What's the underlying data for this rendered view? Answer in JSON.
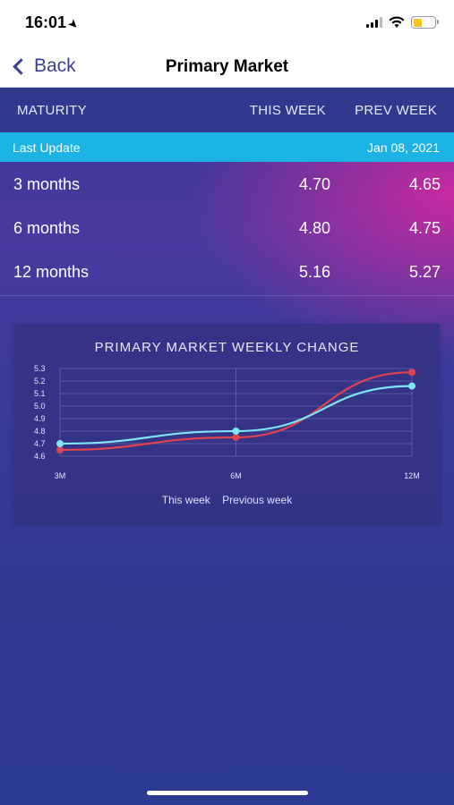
{
  "status_bar": {
    "time": "16:01",
    "battery_level": 0.4
  },
  "nav": {
    "back_label": "Back",
    "title": "Primary Market"
  },
  "table": {
    "headers": {
      "maturity": "MATURITY",
      "this_week": "THIS WEEK",
      "prev_week": "PREV WEEK"
    },
    "last_update_label": "Last Update",
    "last_update_date": "Jan 08, 2021",
    "rows": [
      {
        "maturity": "3 months",
        "this_week": "4.70",
        "prev_week": "4.65"
      },
      {
        "maturity": "6 months",
        "this_week": "4.80",
        "prev_week": "4.75"
      },
      {
        "maturity": "12 months",
        "this_week": "5.16",
        "prev_week": "5.27"
      }
    ]
  },
  "chart_data": {
    "type": "line",
    "title": "PRIMARY MARKET WEEKLY CHANGE",
    "categories": [
      "3M",
      "6M",
      "12M"
    ],
    "ylim": [
      4.6,
      5.3
    ],
    "yticks": [
      "5.3",
      "5.2",
      "5.1",
      "5.0",
      "4.9",
      "4.8",
      "4.7",
      "4.6"
    ],
    "grid": true,
    "legend": [
      "This week",
      "Previous week"
    ],
    "series": [
      {
        "name": "This week",
        "values": [
          4.7,
          4.8,
          5.16
        ],
        "color": "#7ee6f5"
      },
      {
        "name": "Previous week",
        "values": [
          4.65,
          4.75,
          5.27
        ],
        "color": "#e0424e"
      }
    ]
  },
  "colors": {
    "accent": "#1cb2e3",
    "header_bg": "#2f3a8e",
    "nav_text": "#3a3f8f"
  }
}
